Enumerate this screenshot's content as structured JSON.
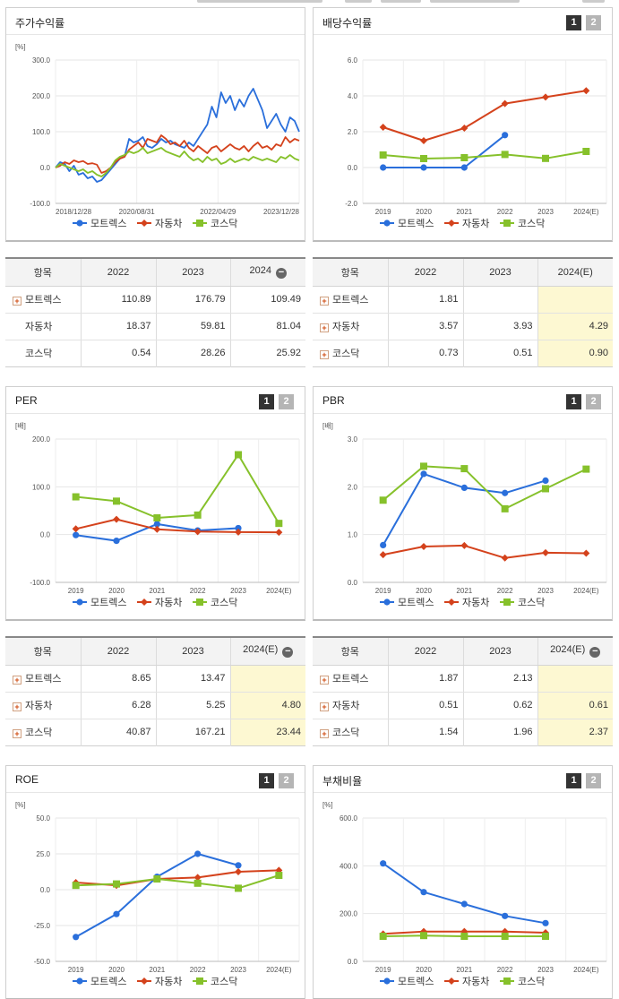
{
  "pager": {
    "p1": "1",
    "p2": "2"
  },
  "panels": [
    {
      "title": "주가수익률"
    },
    {
      "title": "배당수익률"
    },
    {
      "title": "PER"
    },
    {
      "title": "PBR"
    },
    {
      "title": "ROE"
    },
    {
      "title": "부채비율"
    }
  ],
  "colors": {
    "모트렉스": "#2a6fdb",
    "자동차": "#d4421c",
    "코스닥": "#86c12b"
  },
  "tables": [
    {
      "headers": [
        "항목",
        "2022",
        "2023",
        "2024"
      ],
      "rows": [
        [
          "모트렉스",
          "110.89",
          "176.79",
          "109.49"
        ],
        [
          "자동차",
          "18.37",
          "59.81",
          "81.04"
        ],
        [
          "코스닥",
          "0.54",
          "28.26",
          "25.92"
        ]
      ]
    },
    {
      "headers": [
        "항목",
        "2022",
        "2023",
        "2024(E)"
      ],
      "rows": [
        [
          "모트렉스",
          "1.81",
          "",
          ""
        ],
        [
          "자동차",
          "3.57",
          "3.93",
          "4.29"
        ],
        [
          "코스닥",
          "0.73",
          "0.51",
          "0.90"
        ]
      ]
    },
    {
      "headers": [
        "항목",
        "2022",
        "2023",
        "2024(E)"
      ],
      "rows": [
        [
          "모트렉스",
          "8.65",
          "13.47",
          ""
        ],
        [
          "자동차",
          "6.28",
          "5.25",
          "4.80"
        ],
        [
          "코스닥",
          "40.87",
          "167.21",
          "23.44"
        ]
      ]
    },
    {
      "headers": [
        "항목",
        "2022",
        "2023",
        "2024(E)"
      ],
      "rows": [
        [
          "모트렉스",
          "1.87",
          "2.13",
          ""
        ],
        [
          "자동차",
          "0.51",
          "0.62",
          "0.61"
        ],
        [
          "코스닥",
          "1.54",
          "1.96",
          "2.37"
        ]
      ]
    }
  ],
  "chart_data": [
    {
      "type": "line",
      "unit": "[%]",
      "ylim": [
        -100,
        300
      ],
      "yticks": [
        "300.0",
        "200.0",
        "100.0",
        "0.0",
        "-100.0"
      ],
      "xticks": [
        "2018/12/28",
        "2020/08/31",
        "2022/04/29",
        "2023/12/28"
      ],
      "markers": false,
      "series": [
        {
          "name": "모트렉스",
          "values": [
            0,
            15,
            10,
            -10,
            5,
            -20,
            -15,
            -30,
            -25,
            -40,
            -35,
            -20,
            -5,
            10,
            25,
            30,
            80,
            70,
            75,
            85,
            60,
            55,
            65,
            80,
            70,
            75,
            65,
            60,
            55,
            70,
            60,
            80,
            100,
            120,
            170,
            140,
            210,
            180,
            200,
            160,
            190,
            170,
            200,
            220,
            190,
            160,
            110,
            130,
            150,
            120,
            100,
            140,
            130,
            100
          ]
        },
        {
          "name": "자동차",
          "values": [
            0,
            5,
            15,
            10,
            20,
            15,
            18,
            10,
            12,
            8,
            -15,
            -10,
            0,
            15,
            25,
            30,
            50,
            60,
            70,
            55,
            80,
            75,
            70,
            90,
            80,
            65,
            70,
            60,
            75,
            55,
            45,
            60,
            50,
            40,
            55,
            60,
            45,
            55,
            65,
            55,
            50,
            60,
            45,
            60,
            70,
            55,
            60,
            50,
            65,
            60,
            85,
            70,
            80,
            75
          ]
        },
        {
          "name": "코스닥",
          "values": [
            0,
            10,
            5,
            0,
            -5,
            -10,
            -5,
            -15,
            -10,
            -20,
            -25,
            -15,
            0,
            20,
            30,
            35,
            45,
            40,
            45,
            55,
            40,
            45,
            50,
            55,
            45,
            40,
            35,
            30,
            45,
            30,
            20,
            25,
            15,
            30,
            20,
            25,
            10,
            15,
            25,
            15,
            20,
            25,
            20,
            30,
            25,
            20,
            25,
            20,
            15,
            30,
            25,
            35,
            25,
            20
          ]
        }
      ]
    },
    {
      "type": "line",
      "unit": "",
      "ylim": [
        -2,
        6
      ],
      "yticks": [
        "6.0",
        "4.0",
        "2.0",
        "0.0",
        "-2.0"
      ],
      "xticks": [
        "2019",
        "2020",
        "2021",
        "2022",
        "2023",
        "2024(E)"
      ],
      "markers": true,
      "series": [
        {
          "name": "모트렉스",
          "values": [
            0,
            0,
            0,
            1.81,
            null,
            null
          ]
        },
        {
          "name": "자동차",
          "values": [
            2.25,
            1.5,
            2.2,
            3.57,
            3.93,
            4.29
          ]
        },
        {
          "name": "코스닥",
          "values": [
            0.7,
            0.5,
            0.55,
            0.73,
            0.51,
            0.9
          ]
        }
      ]
    },
    {
      "type": "line",
      "unit": "[배]",
      "ylim": [
        -100,
        200
      ],
      "yticks": [
        "200.0",
        "100.0",
        "0.0",
        "-100.0"
      ],
      "xticks": [
        "2019",
        "2020",
        "2021",
        "2022",
        "2023",
        "2024(E)"
      ],
      "markers": true,
      "series": [
        {
          "name": "모트렉스",
          "values": [
            -1,
            -13,
            22,
            8.65,
            13.47,
            null
          ]
        },
        {
          "name": "자동차",
          "values": [
            12,
            32,
            11,
            6.28,
            5.25,
            4.8
          ]
        },
        {
          "name": "코스닥",
          "values": [
            79,
            70,
            35,
            40.87,
            167.21,
            23.44
          ]
        }
      ]
    },
    {
      "type": "line",
      "unit": "[배]",
      "ylim": [
        0,
        3
      ],
      "yticks": [
        "3.0",
        "2.0",
        "1.0",
        "0.0"
      ],
      "xticks": [
        "2019",
        "2020",
        "2021",
        "2022",
        "2023",
        "2024(E)"
      ],
      "markers": true,
      "series": [
        {
          "name": "모트렉스",
          "values": [
            0.78,
            2.27,
            1.98,
            1.87,
            2.13,
            null
          ]
        },
        {
          "name": "자동차",
          "values": [
            0.58,
            0.75,
            0.77,
            0.51,
            0.62,
            0.61
          ]
        },
        {
          "name": "코스닥",
          "values": [
            1.72,
            2.43,
            2.38,
            1.54,
            1.96,
            2.37
          ]
        }
      ]
    },
    {
      "type": "line",
      "unit": "[%]",
      "ylim": [
        -50,
        50
      ],
      "yticks": [
        "50.0",
        "25.0",
        "0.0",
        "-25.0",
        "-50.0"
      ],
      "xticks": [
        "2019",
        "2020",
        "2021",
        "2022",
        "2023",
        "2024(E)"
      ],
      "markers": true,
      "series": [
        {
          "name": "모트렉스",
          "values": [
            -33,
            -17,
            9,
            25,
            17,
            null
          ]
        },
        {
          "name": "자동차",
          "values": [
            5,
            3,
            7.5,
            8.5,
            12.5,
            13.5
          ]
        },
        {
          "name": "코스닥",
          "values": [
            3,
            4,
            7.5,
            4.5,
            1,
            10
          ]
        }
      ]
    },
    {
      "type": "line",
      "unit": "[%]",
      "ylim": [
        0,
        600
      ],
      "yticks": [
        "600.0",
        "400.0",
        "200.0",
        "0.0"
      ],
      "xticks": [
        "2019",
        "2020",
        "2021",
        "2022",
        "2023",
        "2024(E)"
      ],
      "markers": true,
      "series": [
        {
          "name": "모트렉스",
          "values": [
            410,
            290,
            240,
            190,
            160,
            null
          ]
        },
        {
          "name": "자동차",
          "values": [
            115,
            125,
            125,
            125,
            120,
            null
          ]
        },
        {
          "name": "코스닥",
          "values": [
            105,
            108,
            105,
            105,
            105,
            null
          ]
        }
      ]
    }
  ]
}
